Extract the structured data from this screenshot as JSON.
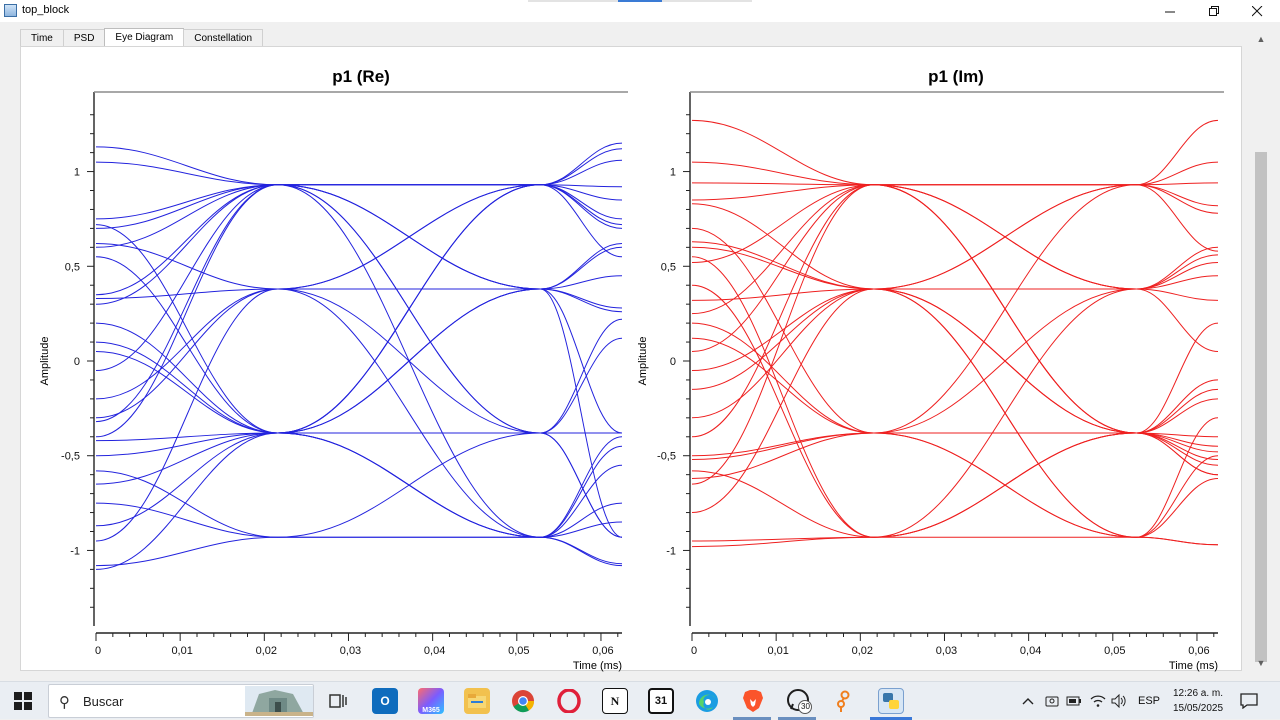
{
  "window": {
    "title": "top_block"
  },
  "tabs": [
    {
      "label": "Time"
    },
    {
      "label": "PSD"
    },
    {
      "label": "Eye Diagram"
    },
    {
      "label": "Constellation"
    }
  ],
  "colors": {
    "re_trace": "#2323dd",
    "im_trace": "#ee2020",
    "axis": "#222222"
  },
  "chart_data": [
    {
      "type": "line",
      "title": "p1 (Re)",
      "xlabel": "Time (ms)",
      "ylabel": "Amplitude",
      "xlim": [
        0,
        0.0625
      ],
      "ylim": [
        -1.42,
        1.42
      ],
      "x_ticks": [
        "0",
        "0,01",
        "0,02",
        "0,03",
        "0,04",
        "0,05",
        "0,06"
      ],
      "y_ticks": [
        "1",
        "0,5",
        "0",
        "-0,5",
        "-1"
      ],
      "grid": false,
      "symbol_times": [
        0.0216,
        0.0528
      ],
      "levels": [
        0.93,
        0.38,
        -0.38,
        -0.93
      ],
      "traces": [
        [
          1.13,
          0.93,
          0.93,
          1.06
        ],
        [
          1.05,
          0.93,
          0.93,
          1.15
        ],
        [
          0.75,
          0.93,
          0.38,
          -0.38
        ],
        [
          0.7,
          0.93,
          -0.38,
          -0.93
        ],
        [
          0.62,
          0.38,
          -0.38,
          -0.93
        ],
        [
          0.6,
          0.93,
          0.93,
          0.75
        ],
        [
          0.33,
          0.38,
          0.38,
          0.28
        ],
        [
          0.3,
          0.93,
          0.93,
          0.7
        ],
        [
          0.1,
          -0.38,
          -0.93,
          -1.07
        ],
        [
          -0.05,
          0.93,
          0.38,
          0.62
        ],
        [
          -0.3,
          0.38,
          0.93,
          0.92
        ],
        [
          -0.32,
          0.93,
          0.38,
          -0.93
        ],
        [
          -0.42,
          -0.38,
          0.93,
          0.55
        ],
        [
          -0.5,
          -0.38,
          -0.38,
          -0.38
        ],
        [
          -0.65,
          -0.38,
          -0.93,
          -0.55
        ],
        [
          -0.75,
          -0.93,
          -0.93,
          -0.85
        ],
        [
          -0.87,
          -0.38,
          0.93,
          0.72
        ],
        [
          -1.08,
          -0.93,
          -0.93,
          -1.08
        ],
        [
          -1.1,
          -0.38,
          0.38,
          0.6
        ],
        [
          0.2,
          -0.38,
          -0.93,
          -0.45
        ],
        [
          -0.4,
          0.93,
          -0.38,
          0.22
        ],
        [
          0.55,
          -0.38,
          0.93,
          0.85
        ],
        [
          -0.2,
          0.38,
          -0.93,
          -0.75
        ],
        [
          0.72,
          -0.38,
          0.38,
          0.45
        ],
        [
          -0.58,
          -0.93,
          -0.38,
          0.12
        ],
        [
          0.35,
          0.93,
          -0.93,
          -0.4
        ],
        [
          -0.95,
          0.38,
          0.93,
          1.12
        ],
        [
          0.05,
          -0.38,
          0.38,
          0.26
        ]
      ]
    },
    {
      "type": "line",
      "title": "p1 (Im)",
      "xlabel": "Time (ms)",
      "ylabel": "Amplitude",
      "xlim": [
        0,
        0.0625
      ],
      "ylim": [
        -1.42,
        1.42
      ],
      "x_ticks": [
        "0",
        "0,01",
        "0,02",
        "0,03",
        "0,04",
        "0,05",
        "0,06"
      ],
      "y_ticks": [
        "1",
        "0,5",
        "0",
        "-0,5",
        "-1"
      ],
      "grid": false,
      "symbol_times": [
        0.0216,
        0.0528
      ],
      "levels": [
        0.93,
        0.38,
        -0.38,
        -0.93
      ],
      "traces": [
        [
          1.27,
          0.93,
          0.93,
          1.27
        ],
        [
          1.05,
          0.93,
          0.93,
          0.94
        ],
        [
          0.94,
          0.93,
          0.38,
          0.05
        ],
        [
          0.83,
          0.38,
          -0.38,
          -0.6
        ],
        [
          0.63,
          0.38,
          0.93,
          0.58
        ],
        [
          0.6,
          0.38,
          -0.38,
          -0.4
        ],
        [
          0.52,
          0.93,
          0.38,
          0.32
        ],
        [
          0.32,
          0.38,
          0.38,
          0.56
        ],
        [
          0.2,
          -0.38,
          -0.93,
          -0.97
        ],
        [
          0.05,
          0.93,
          -0.38,
          -0.55
        ],
        [
          -0.05,
          0.38,
          -0.93,
          -0.5
        ],
        [
          -0.5,
          -0.38,
          -0.38,
          -0.48
        ],
        [
          -0.58,
          -0.93,
          -0.38,
          -0.6
        ],
        [
          -0.62,
          -0.38,
          0.38,
          0.6
        ],
        [
          -0.65,
          0.93,
          0.93,
          0.82
        ],
        [
          -0.95,
          -0.93,
          -0.93,
          -0.97
        ],
        [
          -0.98,
          -0.93,
          -0.38,
          0.2
        ],
        [
          0.4,
          -0.93,
          0.38,
          0.52
        ],
        [
          -0.3,
          0.38,
          0.93,
          1.05
        ],
        [
          0.12,
          -0.38,
          0.93,
          0.78
        ],
        [
          -0.4,
          0.93,
          -0.38,
          -0.1
        ],
        [
          0.7,
          -0.38,
          -0.93,
          -0.3
        ],
        [
          -0.15,
          0.38,
          -0.38,
          -0.52
        ],
        [
          0.55,
          -0.93,
          -0.38,
          -0.2
        ],
        [
          -0.8,
          0.38,
          -0.93,
          -0.62
        ],
        [
          0.25,
          0.93,
          0.38,
          0.45
        ],
        [
          -0.52,
          -0.38,
          -0.38,
          -0.15
        ],
        [
          0.85,
          0.93,
          -0.38,
          -0.45
        ]
      ]
    }
  ],
  "taskbar": {
    "search_placeholder": "Buscar",
    "apps": [
      {
        "name": "task-view-icon"
      },
      {
        "name": "outlook-icon"
      },
      {
        "name": "m365-icon"
      },
      {
        "name": "file-explorer-icon"
      },
      {
        "name": "chrome-icon"
      },
      {
        "name": "opera-icon"
      },
      {
        "name": "notion-icon"
      },
      {
        "name": "calendar-icon",
        "label": "31"
      },
      {
        "name": "edge-icon"
      },
      {
        "name": "brave-icon"
      },
      {
        "name": "whatsapp-icon",
        "badge": "30"
      },
      {
        "name": "gnuradio-icon"
      },
      {
        "name": "python-icon"
      }
    ],
    "tray": {
      "language": "ESP",
      "time": "12:26 a. m.",
      "date": "15/05/2025"
    }
  }
}
